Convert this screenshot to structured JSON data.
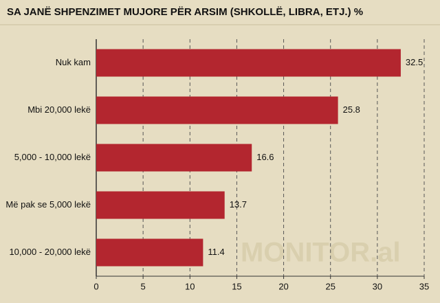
{
  "chart_data": {
    "type": "bar",
    "orientation": "horizontal",
    "title": "SA JANË SHPENZIMET MUJORE PËR ARSIM (SHKOLLË, LIBRA, ETJ.) %",
    "watermark": "MONITOR.al",
    "categories": [
      "Nuk kam",
      "Mbi 20,000 lekë",
      "5,000 - 10,000 lekë",
      "Më pak se 5,000 lekë",
      "10,000 - 20,000 lekë"
    ],
    "values": [
      32.5,
      25.8,
      16.6,
      13.7,
      11.4
    ],
    "color": "#b3262f",
    "xlim": [
      0,
      35
    ],
    "xticks": [
      0,
      5,
      10,
      15,
      20,
      25,
      30,
      35
    ],
    "grid": true
  }
}
